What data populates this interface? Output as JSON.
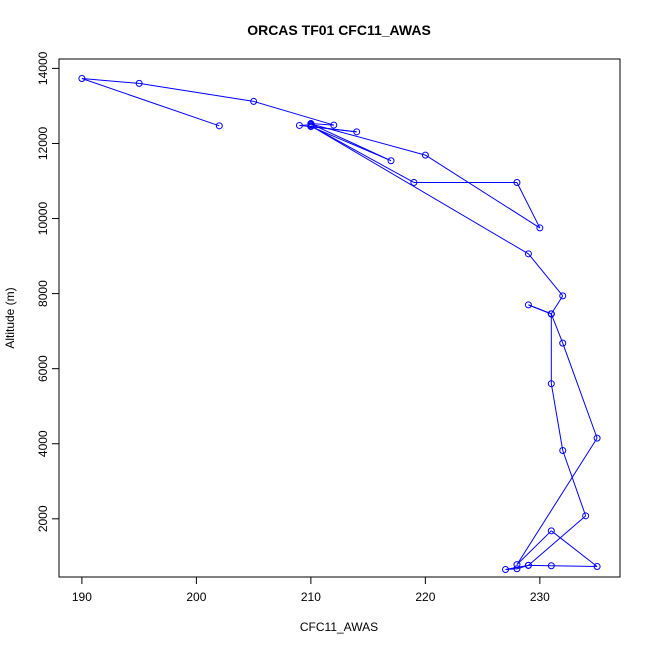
{
  "chart_data": {
    "type": "line",
    "title": "ORCAS TF01 CFC11_AWAS",
    "xlabel": "CFC11_AWAS",
    "ylabel": "Altitude (m)",
    "xlim": [
      188,
      237
    ],
    "ylim": [
      450,
      14250
    ],
    "x_ticks": [
      190,
      200,
      210,
      220,
      230
    ],
    "y_ticks": [
      2000,
      4000,
      6000,
      8000,
      10000,
      12000,
      14000
    ],
    "x_tick_labels": [
      "190",
      "200",
      "210",
      "220",
      "230"
    ],
    "y_tick_labels": [
      "2000",
      "4000",
      "6000",
      "8000",
      "10000",
      "12000",
      "14000"
    ],
    "grid": false,
    "series_color": "#0000ff",
    "points": [
      {
        "x": 202,
        "y": 12470
      },
      {
        "x": 190,
        "y": 13730
      },
      {
        "x": 195,
        "y": 13600
      },
      {
        "x": 205,
        "y": 13120
      },
      {
        "x": 212,
        "y": 12490
      },
      {
        "x": 210,
        "y": 12530
      },
      {
        "x": 210,
        "y": 12500
      },
      {
        "x": 209,
        "y": 12480
      },
      {
        "x": 214,
        "y": 12310
      },
      {
        "x": 210,
        "y": 12450
      },
      {
        "x": 217,
        "y": 11540
      },
      {
        "x": 210,
        "y": 12520
      },
      {
        "x": 220,
        "y": 11690
      },
      {
        "x": 230,
        "y": 9750
      },
      {
        "x": 228,
        "y": 10960
      },
      {
        "x": 219,
        "y": 10960
      },
      {
        "x": 210,
        "y": 12470
      },
      {
        "x": 229,
        "y": 9060
      },
      {
        "x": 232,
        "y": 7940
      },
      {
        "x": 231,
        "y": 7460
      },
      {
        "x": 229,
        "y": 7700
      },
      {
        "x": 231,
        "y": 7460
      },
      {
        "x": 232,
        "y": 6680
      },
      {
        "x": 235,
        "y": 4150
      },
      {
        "x": 228,
        "y": 780
      },
      {
        "x": 231,
        "y": 1680
      },
      {
        "x": 235,
        "y": 730
      },
      {
        "x": 231,
        "y": 750
      },
      {
        "x": 229,
        "y": 760
      },
      {
        "x": 228,
        "y": 670
      },
      {
        "x": 227,
        "y": 650
      },
      {
        "x": 229,
        "y": 760
      },
      {
        "x": 234,
        "y": 2080
      },
      {
        "x": 232,
        "y": 3820
      },
      {
        "x": 231,
        "y": 5600
      },
      {
        "x": 231,
        "y": 7460
      }
    ]
  }
}
